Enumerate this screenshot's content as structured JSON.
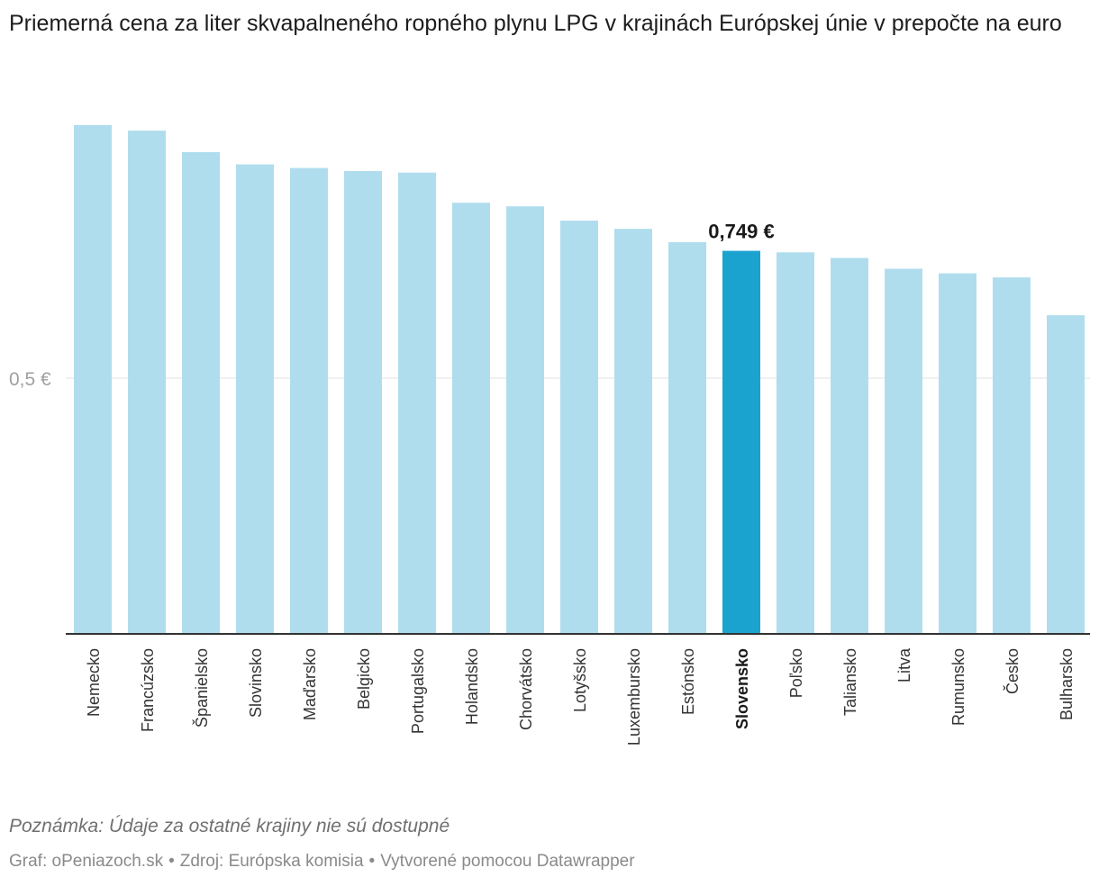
{
  "chart_data": {
    "type": "bar",
    "title": "Priemerná cena za liter skvapalneného ropného plynu LPG v krajinách Európskej únie v prepočte na euro",
    "categories": [
      "Nemecko",
      "Francúzsko",
      "Španielsko",
      "Slovinsko",
      "Maďarsko",
      "Belgicko",
      "Portugalsko",
      "Holandsko",
      "Chorvátsko",
      "Lotyšsko",
      "Luxembursko",
      "Estónsko",
      "Slovensko",
      "Poľsko",
      "Taliansko",
      "Litva",
      "Rumunsko",
      "Česko",
      "Bulharsko"
    ],
    "values": [
      0.995,
      0.984,
      0.942,
      0.918,
      0.911,
      0.905,
      0.902,
      0.843,
      0.836,
      0.808,
      0.792,
      0.766,
      0.749,
      0.746,
      0.735,
      0.714,
      0.705,
      0.697,
      0.623
    ],
    "highlight_index": 12,
    "highlight_label": "0,749 €",
    "y_ticks": [
      0.5
    ],
    "y_tick_labels": [
      "0,5 €"
    ],
    "ylim": [
      0,
      1.05
    ],
    "xlabel": "",
    "ylabel": "",
    "grid": true,
    "colors": {
      "bar": "#b0dded",
      "highlight": "#1ba3cf",
      "axis": "#333333",
      "grid": "#e2e2e2",
      "tick_text": "#a0a0a0",
      "label_text": "#333333",
      "highlight_text": "#1a1a1a"
    }
  },
  "notes": {
    "note": "Poznámka: Údaje za ostatné krajiny nie sú dostupné",
    "footer_graph": "Graf: oPeniazoch.sk",
    "footer_source": "Zdroj: Európska komisia",
    "footer_tool": "Vytvorené pomocou Datawrapper",
    "separator": "•"
  }
}
